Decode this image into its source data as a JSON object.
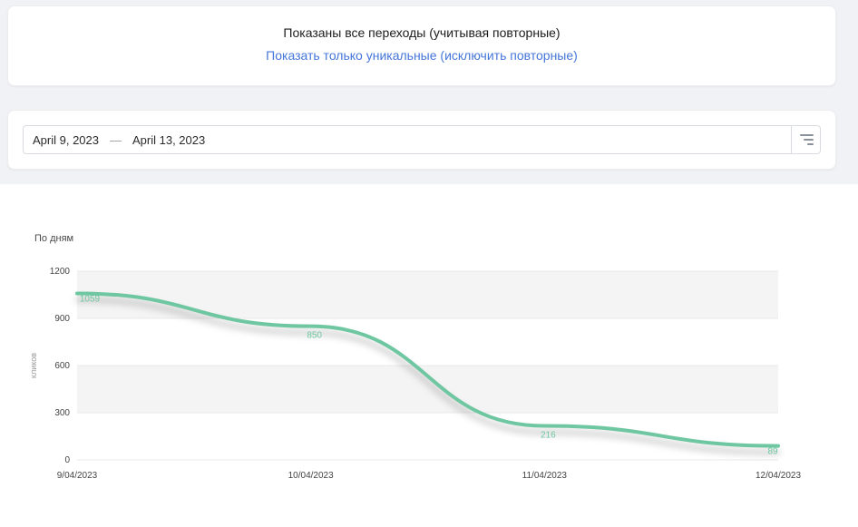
{
  "header": {
    "title": "Показаны все переходы (учитывая повторные)",
    "link_label": "Показать только уникальные (исключить повторные)"
  },
  "date_filter": {
    "start": "April 9, 2023",
    "separator": "—",
    "end": "April 13, 2023"
  },
  "chart_data": {
    "type": "line",
    "title": "По дням",
    "ylabel": "кликов",
    "x": [
      "9/04/2023",
      "10/04/2023",
      "11/04/2023",
      "12/04/2023"
    ],
    "values": [
      1059,
      850,
      216,
      89
    ],
    "point_labels": [
      "1059",
      "850",
      "216",
      "89"
    ],
    "ylim": [
      0,
      1200
    ],
    "yticks": [
      0,
      300,
      600,
      900,
      1200
    ],
    "grid": true,
    "legend": false,
    "line_color": "#6fc7a2",
    "band_color": "#f4f4f4",
    "tick_color": "#444444",
    "ylabel_color": "#999999"
  },
  "colors": {
    "link": "#4576d9",
    "accent": "#6fc7a2"
  }
}
